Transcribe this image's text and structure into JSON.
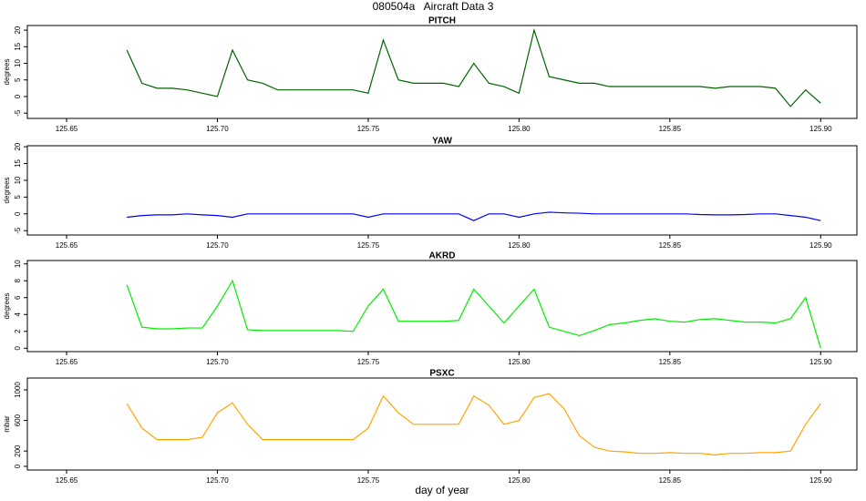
{
  "title": "080504a   Aircraft Data 3",
  "chart_data": [
    {
      "type": "line",
      "title": "PITCH",
      "ylabel": "degrees",
      "xlim": [
        125.637,
        125.912
      ],
      "ylim": [
        -6.6,
        21.4
      ],
      "xticks": [
        125.65,
        {
          "value": 125.7,
          "label": "125.70"
        },
        125.75,
        {
          "value": 125.8,
          "label": "125.80"
        },
        125.85,
        {
          "value": 125.9,
          "label": "125.90"
        }
      ],
      "yticks": [
        -5,
        0,
        5,
        10,
        15,
        20
      ],
      "x": [
        125.67,
        125.675,
        125.68,
        125.685,
        125.69,
        125.695,
        125.7,
        125.705,
        125.71,
        125.715,
        125.72,
        125.725,
        125.73,
        125.735,
        125.74,
        125.745,
        125.75,
        125.755,
        125.76,
        125.765,
        125.77,
        125.775,
        125.78,
        125.785,
        125.79,
        125.795,
        125.8,
        125.805,
        125.81,
        125.815,
        125.82,
        125.825,
        125.83,
        125.835,
        125.84,
        125.845,
        125.85,
        125.855,
        125.86,
        125.865,
        125.87,
        125.875,
        125.88,
        125.885,
        125.89,
        125.895,
        125.9
      ],
      "series": [
        {
          "name": "PITCH",
          "color": "#006400",
          "values": [
            14,
            4,
            2.5,
            2.5,
            2,
            1,
            0,
            14,
            5,
            4,
            2,
            2,
            2,
            2,
            2,
            2,
            1,
            17,
            5,
            4,
            4,
            4,
            3,
            10,
            4,
            3,
            1,
            20,
            6,
            5,
            4,
            4,
            3,
            3,
            3,
            3,
            3,
            3,
            3,
            2.5,
            3,
            3,
            3,
            2.5,
            -3,
            2,
            -2
          ]
        }
      ]
    },
    {
      "type": "line",
      "title": "YAW",
      "ylabel": "degrees",
      "xlim": [
        125.637,
        125.912
      ],
      "ylim": [
        -6.3,
        20.3
      ],
      "xticks": [
        125.65,
        {
          "value": 125.7,
          "label": "125.70"
        },
        125.75,
        {
          "value": 125.8,
          "label": "125.80"
        },
        125.85,
        {
          "value": 125.9,
          "label": "125.90"
        }
      ],
      "yticks": [
        -5,
        0,
        5,
        10,
        15,
        20
      ],
      "x": [
        125.67,
        125.675,
        125.68,
        125.685,
        125.69,
        125.695,
        125.7,
        125.705,
        125.71,
        125.715,
        125.72,
        125.725,
        125.73,
        125.735,
        125.74,
        125.745,
        125.75,
        125.755,
        125.76,
        125.765,
        125.77,
        125.775,
        125.78,
        125.785,
        125.79,
        125.795,
        125.8,
        125.805,
        125.81,
        125.815,
        125.82,
        125.825,
        125.83,
        125.835,
        125.84,
        125.845,
        125.85,
        125.855,
        125.86,
        125.865,
        125.87,
        125.875,
        125.88,
        125.885,
        125.89,
        125.895,
        125.9
      ],
      "series": [
        {
          "name": "YAW",
          "color": "#0000ff",
          "values": [
            -1,
            -0.5,
            -0.3,
            -0.3,
            0,
            -0.3,
            -0.5,
            -1,
            0,
            0,
            0,
            0,
            0,
            0,
            0,
            0,
            -1,
            0,
            0,
            0,
            0,
            0,
            0,
            -2,
            0,
            0,
            -1,
            0,
            0.5,
            0.3,
            0.2,
            0,
            0,
            0,
            0,
            0,
            0,
            0,
            -0.2,
            -0.3,
            -0.3,
            -0.2,
            0,
            0,
            -0.5,
            -1,
            -2
          ]
        }
      ]
    },
    {
      "type": "line",
      "title": "AKRD",
      "ylabel": "degrees",
      "xlim": [
        125.637,
        125.912
      ],
      "ylim": [
        -0.4,
        10.4
      ],
      "xticks": [
        125.65,
        {
          "value": 125.7,
          "label": "125.70"
        },
        125.75,
        {
          "value": 125.8,
          "label": "125.80"
        },
        125.85,
        {
          "value": 125.9,
          "label": "125.90"
        }
      ],
      "yticks": [
        0,
        2,
        4,
        6,
        8,
        10
      ],
      "x": [
        125.67,
        125.675,
        125.68,
        125.685,
        125.69,
        125.695,
        125.7,
        125.705,
        125.71,
        125.715,
        125.72,
        125.725,
        125.73,
        125.735,
        125.74,
        125.745,
        125.75,
        125.755,
        125.76,
        125.765,
        125.77,
        125.775,
        125.78,
        125.785,
        125.79,
        125.795,
        125.8,
        125.805,
        125.81,
        125.815,
        125.82,
        125.825,
        125.83,
        125.835,
        125.84,
        125.845,
        125.85,
        125.855,
        125.86,
        125.865,
        125.87,
        125.875,
        125.88,
        125.885,
        125.89,
        125.895,
        125.9
      ],
      "series": [
        {
          "name": "AKRD",
          "color": "#00ee00",
          "values": [
            7.5,
            2.5,
            2.3,
            2.3,
            2.4,
            2.4,
            5,
            8,
            2.2,
            2.1,
            2.1,
            2.1,
            2.1,
            2.1,
            2.1,
            2,
            5,
            7,
            3.2,
            3.2,
            3.2,
            3.2,
            3.3,
            7,
            5,
            3,
            5,
            7,
            2.5,
            2,
            1.5,
            2.1,
            2.8,
            3,
            3.3,
            3.5,
            3.2,
            3.1,
            3.4,
            3.5,
            3.3,
            3.1,
            3.1,
            3.0,
            3.5,
            6,
            0
          ]
        }
      ]
    },
    {
      "type": "line",
      "title": "PSXC",
      "ylabel": "mbar",
      "xlabel": "day of year",
      "xlim": [
        125.637,
        125.912
      ],
      "ylim": [
        -48,
        1155
      ],
      "xticks": [
        125.65,
        {
          "value": 125.7,
          "label": "125.70"
        },
        125.75,
        {
          "value": 125.8,
          "label": "125.80"
        },
        125.85,
        {
          "value": 125.9,
          "label": "125.90"
        }
      ],
      "yticks": [
        0,
        200,
        600,
        1000
      ],
      "x": [
        125.67,
        125.675,
        125.68,
        125.685,
        125.69,
        125.695,
        125.7,
        125.705,
        125.71,
        125.715,
        125.72,
        125.725,
        125.73,
        125.735,
        125.74,
        125.745,
        125.75,
        125.755,
        125.76,
        125.765,
        125.77,
        125.775,
        125.78,
        125.785,
        125.79,
        125.795,
        125.8,
        125.805,
        125.81,
        125.815,
        125.82,
        125.825,
        125.83,
        125.835,
        125.84,
        125.845,
        125.85,
        125.855,
        125.86,
        125.865,
        125.87,
        125.875,
        125.88,
        125.885,
        125.89,
        125.895,
        125.9
      ],
      "series": [
        {
          "name": "PSXC",
          "color": "#ffa500",
          "values": [
            820,
            500,
            350,
            350,
            350,
            380,
            700,
            830,
            550,
            350,
            350,
            350,
            350,
            350,
            350,
            350,
            500,
            920,
            700,
            550,
            550,
            550,
            550,
            920,
            800,
            550,
            600,
            900,
            950,
            750,
            400,
            250,
            200,
            190,
            170,
            170,
            180,
            170,
            170,
            150,
            170,
            170,
            180,
            180,
            200,
            550,
            820
          ]
        }
      ]
    }
  ]
}
